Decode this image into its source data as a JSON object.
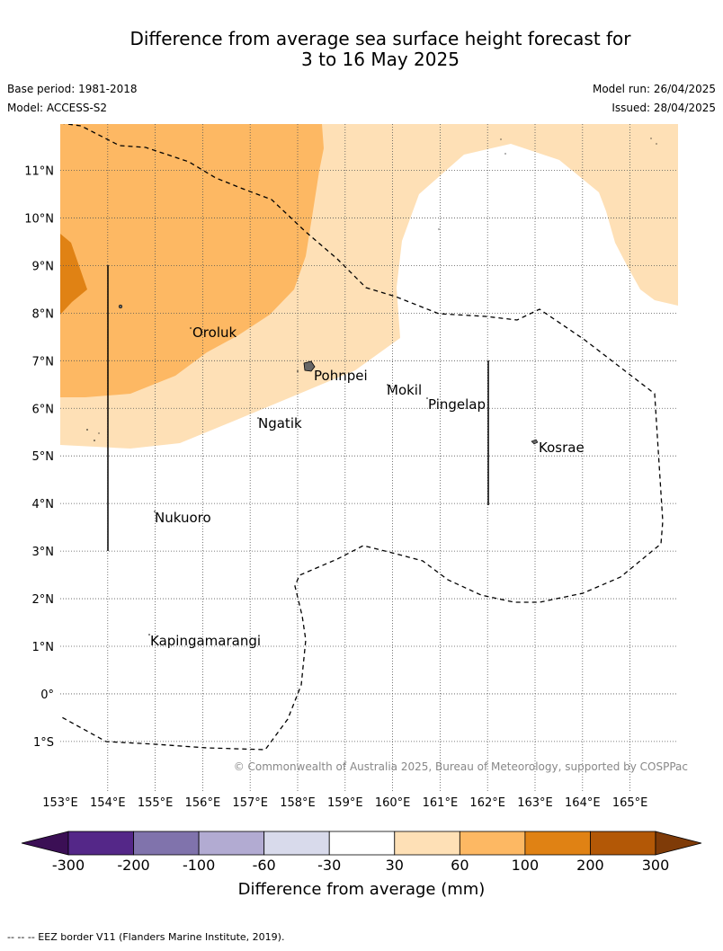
{
  "header": {
    "title_line1": "Difference from average sea surface height forecast for",
    "title_line2": "3 to 16 May 2025",
    "base_period": "Base period: 1981-2018",
    "model": "Model: ACCESS-S2",
    "model_run": "Model run: 26/04/2025",
    "issued": "Issued: 28/04/2025"
  },
  "map": {
    "lat_labels": [
      "11°N",
      "10°N",
      "9°N",
      "8°N",
      "7°N",
      "6°N",
      "5°N",
      "4°N",
      "3°N",
      "2°N",
      "1°N",
      "0°",
      "1°S"
    ],
    "lon_labels": [
      "153°E",
      "154°E",
      "155°E",
      "156°E",
      "157°E",
      "158°E",
      "159°E",
      "160°E",
      "161°E",
      "162°E",
      "163°E",
      "164°E",
      "165°E"
    ],
    "places": [
      "Oroluk",
      "Pohnpei",
      "Mokil",
      "Pingelap",
      "Ngatik",
      "Kosrae",
      "Nukuoro",
      "Kapingamarangi"
    ],
    "copyright": "© Commonwealth of Australia 2025, Bureau of Meteorology, supported by COSPPac"
  },
  "legend": {
    "tick_labels": [
      "-300",
      "-200",
      "-100",
      "-60",
      "-30",
      "30",
      "60",
      "100",
      "200",
      "300"
    ],
    "colors": [
      "#3b0f55",
      "#542788",
      "#8073ac",
      "#b2abd2",
      "#d8daeb",
      "#ffffff",
      "#fee0b6",
      "#fdb863",
      "#e08214",
      "#b35806",
      "#7f3b08"
    ],
    "label": "Difference from average (mm)"
  },
  "footnote": "--  --  -- EEZ border V11 (Flanders Marine Institute, 2019)."
}
